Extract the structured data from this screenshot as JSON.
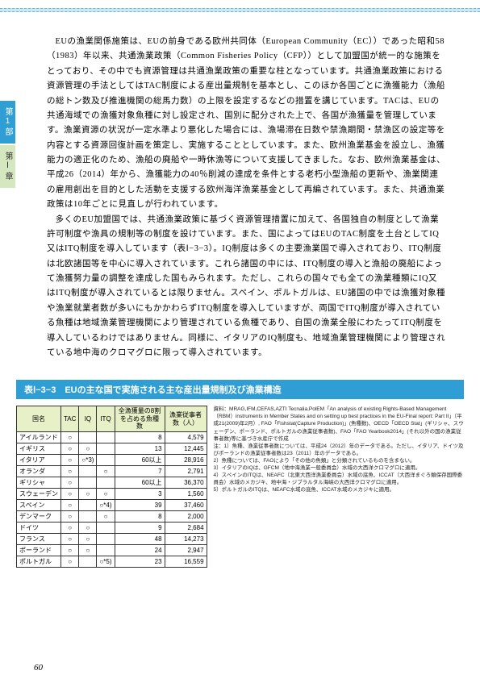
{
  "sidebar": {
    "tab1": "第1部",
    "tab2": "第Ⅰ章"
  },
  "paragraphs": {
    "p1": "EUの漁業関係施策は、EUの前身である欧州共同体（European Community（EC））であった昭和58（1983）年以来、共通漁業政策（Common Fisheries Policy（CFP））として加盟国が統一的な施策をとっており、その中でも資源管理は共通漁業政策の重要な柱となっています。共通漁業政策における資源管理の手法としてはTAC制度による産出量規制を基本とし、このほか各国ごとに漁獲能力（漁船の総トン数及び推進機関の総馬力数）の上限を設定するなどの措置を講じています。TACは、EUの共通海域での漁獲対象魚種に対し設定され、国別に配分された上で、各国が漁獲量を管理しています。漁業資源の状況が一定水準より悪化した場合には、漁場滞在日数や禁漁期間・禁漁区の設定等を内容とする資源回復計画を策定し、実施することとしています。また、欧州漁業基金を設立し、漁獲能力の適正化のため、漁船の廃船や一時休漁等について支援してきました。なお、欧州漁業基金は、平成26（2014）年から、漁獲能力の40％削減の達成を条件とする老朽小型漁船の更新や、漁業関連の雇用創出を目的とした活動を支援する欧州海洋漁業基金として再編されています。また、共通漁業政策は10年ごとに見直しが行われています。",
    "p2": "多くのEU加盟国では、共通漁業政策に基づく資源管理措置に加えて、各国独自の制度として漁業許可制度や漁具の規制等の制度を設けています。また、国によってはEUのTAC制度を土台としてIQ又はITQ制度を導入しています（表Ⅰ−3−3）。IQ制度は多くの主要漁業国で導入されており、ITQ制度は北欧諸国等を中心に導入されています。これら諸国の中には、ITQ制度の導入と漁船の廃船によって漁獲努力量の調整を達成した国もみられます。ただし、これらの国々でも全ての漁業種類にIQ又はITQ制度が導入されているとは限りません。スペイン、ポルトガルは、EU諸国の中では漁獲対象種や漁業就業者数が多いにもかかわらずITQ制度を導入していますが、両国でITQ制度が導入されている魚種は地域漁業管理機関により管理されている魚種であり、自国の漁業全般にわたってITQ制度を導入しているわけではありません。同様に、イタリアのIQ制度も、地域漁業管理機関により管理されている地中海のクロマグロに限って導入されています。"
  },
  "table": {
    "title": "表Ⅰ−3−3　EUの主な国で実施される主な産出量規制及び漁業構造",
    "headers": {
      "country": "国名",
      "tac": "TAC",
      "iq": "IQ",
      "itq": "ITQ",
      "species": "全漁獲量の8割を占める魚種数",
      "workers": "漁業従事者数（人）"
    },
    "rows": [
      {
        "c": "アイルランド",
        "tac": "○",
        "iq": "",
        "itq": "",
        "sp": "8",
        "wk": "4,579"
      },
      {
        "c": "イギリス",
        "tac": "○",
        "iq": "○",
        "itq": "",
        "sp": "13",
        "wk": "12,445"
      },
      {
        "c": "イタリア",
        "tac": "○",
        "iq": "○*3)",
        "itq": "",
        "sp": "60以上",
        "wk": "28,916"
      },
      {
        "c": "オランダ",
        "tac": "○",
        "iq": "",
        "itq": "○",
        "sp": "7",
        "wk": "2,791"
      },
      {
        "c": "ギリシャ",
        "tac": "○",
        "iq": "",
        "itq": "",
        "sp": "60以上",
        "wk": "36,370"
      },
      {
        "c": "スウェーデン",
        "tac": "○",
        "iq": "○",
        "itq": "○",
        "sp": "3",
        "wk": "1,560"
      },
      {
        "c": "スペイン",
        "tac": "○",
        "iq": "",
        "itq": "○*4)",
        "sp": "39",
        "wk": "37,460"
      },
      {
        "c": "デンマーク",
        "tac": "○",
        "iq": "",
        "itq": "○",
        "sp": "8",
        "wk": "2,000"
      },
      {
        "c": "ドイツ",
        "tac": "○",
        "iq": "○",
        "itq": "",
        "sp": "9",
        "wk": "2,684"
      },
      {
        "c": "フランス",
        "tac": "○",
        "iq": "○",
        "itq": "",
        "sp": "48",
        "wk": "14,273"
      },
      {
        "c": "ポーランド",
        "tac": "○",
        "iq": "○",
        "itq": "",
        "sp": "24",
        "wk": "2,947"
      },
      {
        "c": "ポルトガル",
        "tac": "○",
        "iq": "",
        "itq": "○*5)",
        "sp": "23",
        "wk": "16,559"
      }
    ]
  },
  "notes": {
    "source": "資料：MRAG,IFM,CEFAS,AZTI Tecnalia,PolEM「An analysis of existing Rights-Based Management（RBM）instruments in Member States and on setting up best practices in the EU-Final report: Part II」（平成21(2009)年2月）, FAO「Fishstat(Capture Production)」(魚種数)、OECD「OECD Stat」(ギリシャ、スウェーデン、ポーランド、ポルトガルの漁業従事者数)、FAO「FAO Yearbook2014」(それ以外の国の漁業従事者数)等に基づき水産庁で作成",
    "n1": "注：1）魚種、漁業従事者数については、平成24（2012）年のデータである。ただし、イタリア、ドイツ及びポーランドの漁業従事者数は23（2011）年のデータである。",
    "n2": "2）魚種については、FAOにより「その他の魚類」と分類されているものを含まない。",
    "n3": "3）イタリアのIQは、GFCM（地中海漁業一般委員会）水域の大西洋クロマグロに適用。",
    "n4": "4）スペインのITQは、NEAFC（北東大西洋漁業委員会）水域の底魚、ICCAT（大西洋まぐろ類保存国際委員会）水域のメカジキ、地中海・ジブラルタル海峡の大西洋クロマグロに適用。",
    "n5": "5）ポルトガルのITQは、NEAFC水域の底魚、ICCAT水域のメカジキに適用。"
  },
  "pageNum": "60"
}
